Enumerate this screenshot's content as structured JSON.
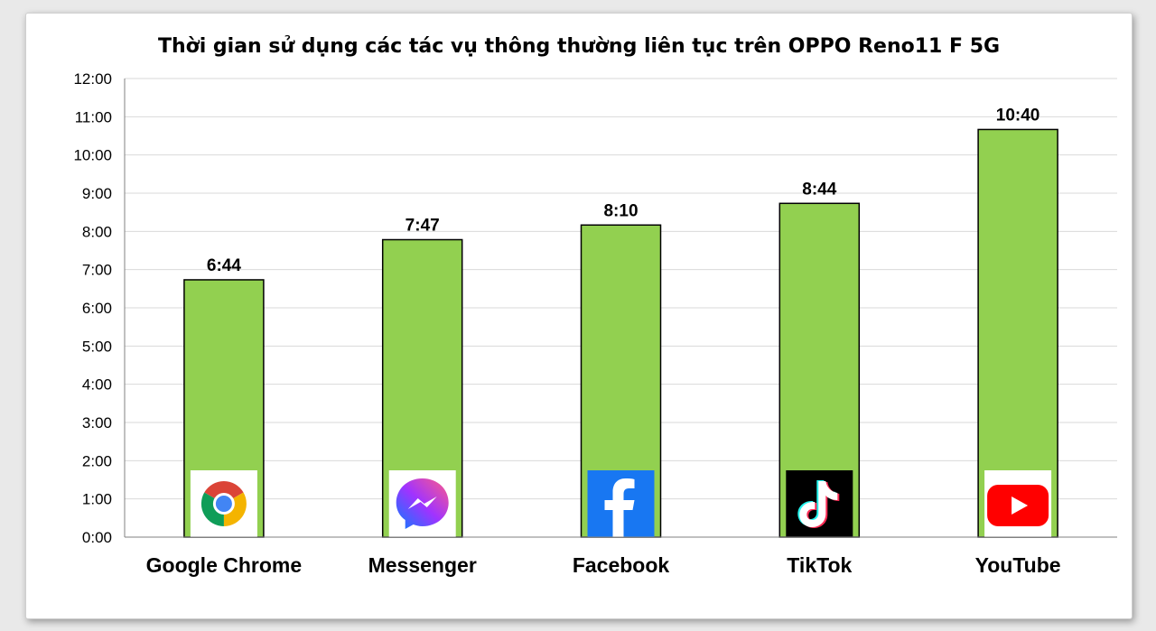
{
  "chart_data": {
    "type": "bar",
    "title": "Thời gian sử dụng các tác vụ thông thường liên tục trên OPPO Reno11 F 5G",
    "xlabel": "",
    "ylabel": "",
    "y_unit": "hours:minutes",
    "ylim": [
      "0:00",
      "12:00"
    ],
    "yticks": [
      "0:00",
      "1:00",
      "2:00",
      "3:00",
      "4:00",
      "5:00",
      "6:00",
      "7:00",
      "8:00",
      "9:00",
      "10:00",
      "11:00",
      "12:00"
    ],
    "categories": [
      "Google Chrome",
      "Messenger",
      "Facebook",
      "TikTok",
      "YouTube"
    ],
    "values": [
      "6:44",
      "7:47",
      "8:10",
      "8:44",
      "10:40"
    ],
    "data_labels": [
      "6:44",
      "7:47",
      "8:10",
      "8:44",
      "10:40"
    ],
    "category_icons": [
      "chrome-icon",
      "messenger-icon",
      "facebook-icon",
      "tiktok-icon",
      "youtube-icon"
    ],
    "grid": true,
    "legend": "none",
    "colors": {
      "bar_fill": "#92d050",
      "bar_stroke": "#000000",
      "grid": "#d9d9d9",
      "axis": "#808080",
      "background": "#ffffff"
    }
  }
}
